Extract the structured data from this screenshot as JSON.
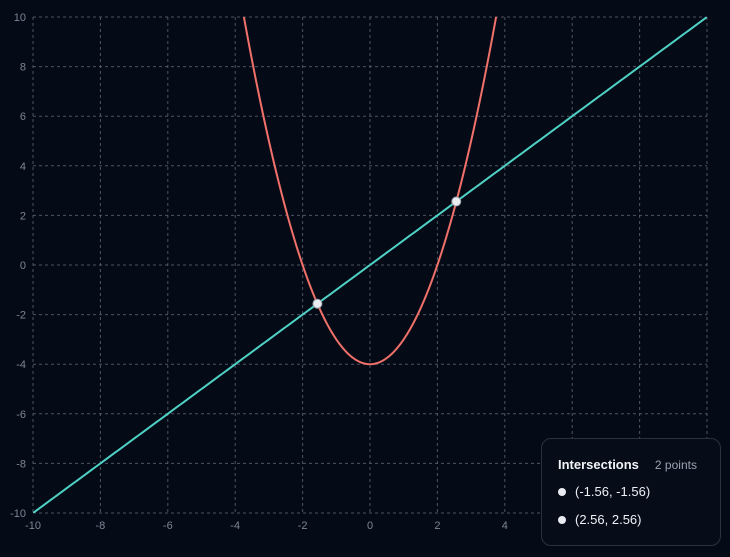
{
  "chart_data": {
    "type": "line",
    "xlim": [
      -10,
      10
    ],
    "ylim": [
      -10,
      10
    ],
    "x_ticks": [
      -10,
      -8,
      -6,
      -4,
      -2,
      0,
      2,
      4
    ],
    "y_ticks": [
      10,
      8,
      6,
      4,
      2,
      0,
      -2,
      -4,
      -6,
      -8,
      -10
    ],
    "grid": true,
    "series": [
      {
        "expression": "y = x^2 - 4",
        "color": "#f0706a",
        "x_domain": [
          -10,
          10
        ]
      },
      {
        "expression": "y = x",
        "color": "#4fd1c5",
        "x_domain": [
          -10,
          10
        ]
      }
    ],
    "points": [
      {
        "x": -1.56,
        "y": -1.56
      },
      {
        "x": 2.56,
        "y": 2.56
      }
    ]
  },
  "panel": {
    "title": "Intersections",
    "count": "2 points",
    "items": [
      {
        "label": "(-1.56, -1.56)"
      },
      {
        "label": "(2.56, 2.56)"
      }
    ]
  },
  "colors": {
    "background": "#050b16",
    "grid": "#5a6070",
    "point": "#e9ecf1"
  }
}
